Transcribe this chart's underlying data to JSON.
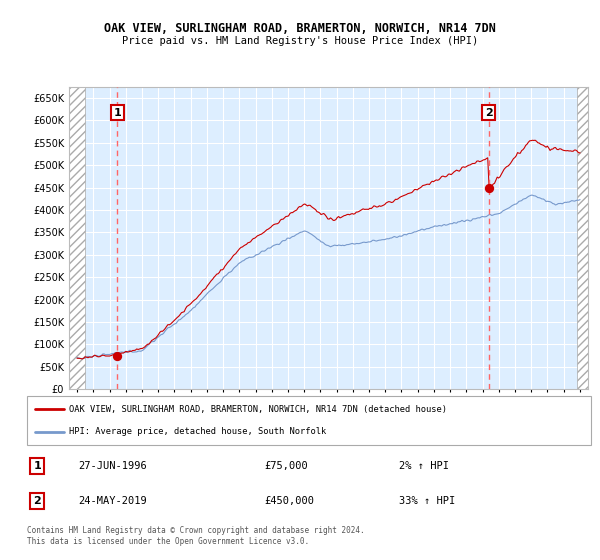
{
  "title": "OAK VIEW, SURLINGHAM ROAD, BRAMERTON, NORWICH, NR14 7DN",
  "subtitle": "Price paid vs. HM Land Registry's House Price Index (HPI)",
  "ylabel_ticks": [
    0,
    50000,
    100000,
    150000,
    200000,
    250000,
    300000,
    350000,
    400000,
    450000,
    500000,
    550000,
    600000,
    650000
  ],
  "ylim": [
    0,
    675000
  ],
  "xlim_start": 1993.5,
  "xlim_end": 2025.5,
  "sale1_year": 1996.48,
  "sale1_price": 75000,
  "sale1_date": "27-JUN-1996",
  "sale1_price_str": "£75,000",
  "sale1_hpi": "2% ↑ HPI",
  "sale2_year": 2019.38,
  "sale2_price": 450000,
  "sale2_date": "24-MAY-2019",
  "sale2_price_str": "£450,000",
  "sale2_hpi": "33% ↑ HPI",
  "line_color_property": "#cc0000",
  "line_color_hpi": "#7799cc",
  "marker_color": "#cc0000",
  "vline_color": "#ff6666",
  "bg_color": "#ddeeff",
  "grid_color": "#ffffff",
  "legend_line1": "OAK VIEW, SURLINGHAM ROAD, BRAMERTON, NORWICH, NR14 7DN (detached house)",
  "legend_line2": "HPI: Average price, detached house, South Norfolk",
  "copyright_text": "Contains HM Land Registry data © Crown copyright and database right 2024.\nThis data is licensed under the Open Government Licence v3.0.",
  "xtick_years": [
    1994,
    1995,
    1996,
    1997,
    1998,
    1999,
    2000,
    2001,
    2002,
    2003,
    2004,
    2005,
    2006,
    2007,
    2008,
    2009,
    2010,
    2011,
    2012,
    2013,
    2014,
    2015,
    2016,
    2017,
    2018,
    2019,
    2020,
    2021,
    2022,
    2023,
    2024,
    2025
  ]
}
